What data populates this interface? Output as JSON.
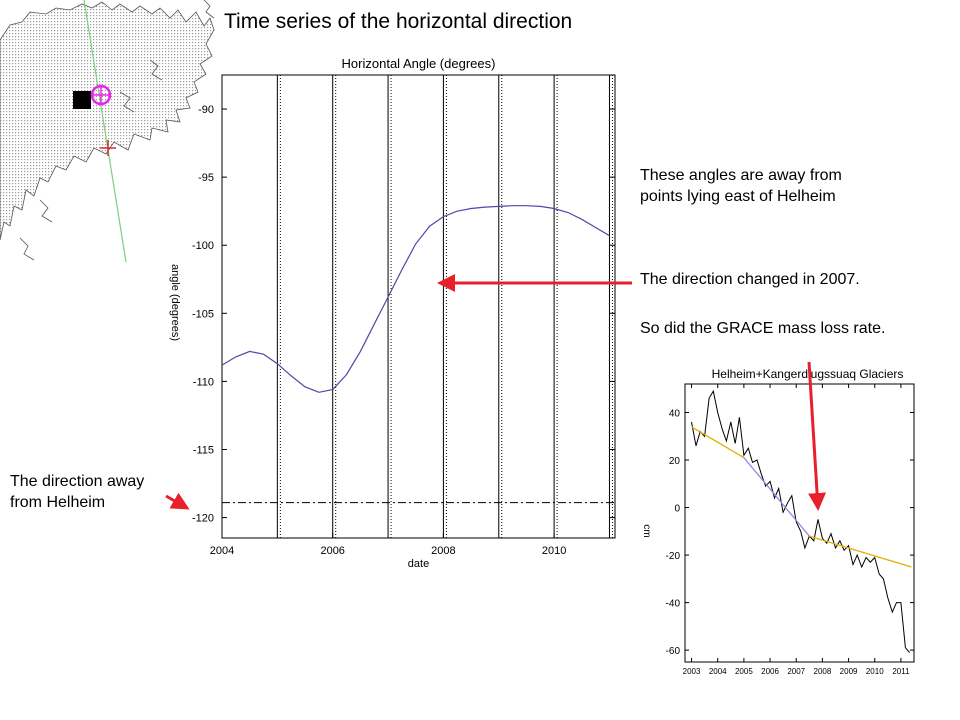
{
  "slide_title": "Time series of the horizontal direction",
  "annotations": {
    "east_points": [
      "These angles are away from",
      "points lying  east of Helheim"
    ],
    "direction_changed": "The direction changed in 2007.",
    "grace_loss": "So did the GRACE mass loss rate.",
    "direction_away": [
      "The direction away",
      "from Helheim"
    ]
  },
  "colors": {
    "arrow": "#e8202a",
    "angle_curve": "#4a4aa8",
    "grace_fit_early": "#8c8ce8",
    "grace_fit_late": "#e0b000",
    "map_marker_circle": "#ee22ee",
    "map_track": "#7cd07c"
  },
  "map_inset": {
    "icons": [
      "coastline-map",
      "station-square-marker",
      "target-circle-marker",
      "plus-marker",
      "profile-line"
    ]
  },
  "chart_data": [
    {
      "type": "line",
      "title": "Horizontal Angle (degrees)",
      "xlabel": "date",
      "ylabel": "angle (degrees)",
      "xlim": [
        2004,
        2011.1
      ],
      "ylim": [
        -121.5,
        -87.5
      ],
      "x_ticks": [
        2004,
        2006,
        2008,
        2010
      ],
      "y_ticks": [
        -90,
        -95,
        -100,
        -105,
        -110,
        -115,
        -120
      ],
      "x_tick_labels": [
        "2004",
        "2006",
        "2008",
        "2010"
      ],
      "y_tick_labels": [
        "-90",
        "-95",
        "-100",
        "-105",
        "-110",
        "-115",
        "-120"
      ],
      "vertical_gridlines": [
        2005,
        2006,
        2007,
        2008,
        2009,
        2010,
        2011
      ],
      "grid": false,
      "reference_line": {
        "y": -118.9,
        "style": "dash-dot"
      },
      "series": [
        {
          "x": [
            2004.0,
            2004.25,
            2004.5,
            2004.75,
            2005.0,
            2005.25,
            2005.5,
            2005.75,
            2006.0,
            2006.25,
            2006.5,
            2006.75,
            2007.0,
            2007.25,
            2007.5,
            2007.75,
            2008.0,
            2008.25,
            2008.5,
            2008.75,
            2009.0,
            2009.25,
            2009.5,
            2009.75,
            2010.0,
            2010.25,
            2010.5,
            2010.75,
            2011.0
          ],
          "y": [
            -108.8,
            -108.2,
            -107.8,
            -108.0,
            -108.7,
            -109.6,
            -110.4,
            -110.8,
            -110.6,
            -109.5,
            -107.8,
            -105.8,
            -103.8,
            -101.8,
            -99.9,
            -98.6,
            -97.9,
            -97.5,
            -97.3,
            -97.2,
            -97.15,
            -97.1,
            -97.1,
            -97.15,
            -97.3,
            -97.6,
            -98.1,
            -98.7,
            -99.3
          ]
        }
      ]
    },
    {
      "type": "line",
      "title": "Helheim+Kangerdlugssuaq Glaciers",
      "xlabel": "",
      "ylabel": "cm",
      "xlim": [
        2002.75,
        2011.5
      ],
      "ylim": [
        -65,
        52
      ],
      "x_ticks": [
        2003,
        2004,
        2005,
        2006,
        2007,
        2008,
        2009,
        2010,
        2011
      ],
      "y_ticks": [
        40,
        20,
        0,
        -20,
        -40,
        -60
      ],
      "x_tick_labels": [
        "2003",
        "2004",
        "2005",
        "2006",
        "2007",
        "2008",
        "2009",
        "2010",
        "2011"
      ],
      "y_tick_labels": [
        "40",
        "20",
        "0",
        "-20",
        "-40",
        "-60"
      ],
      "grid": false,
      "series": [
        {
          "x": [
            2003.0,
            2003.17,
            2003.33,
            2003.5,
            2003.67,
            2003.83,
            2004.0,
            2004.17,
            2004.33,
            2004.5,
            2004.67,
            2004.83,
            2005.0,
            2005.17,
            2005.33,
            2005.5,
            2005.67,
            2005.83,
            2006.0,
            2006.17,
            2006.33,
            2006.5,
            2006.67,
            2006.83,
            2007.0,
            2007.17,
            2007.33,
            2007.5,
            2007.67,
            2007.83,
            2008.0,
            2008.17,
            2008.33,
            2008.5,
            2008.67,
            2008.83,
            2009.0,
            2009.17,
            2009.33,
            2009.5,
            2009.67,
            2009.83,
            2010.0,
            2010.17,
            2010.33,
            2010.5,
            2010.67,
            2010.83,
            2011.0,
            2011.17,
            2011.33
          ],
          "y": [
            36,
            26,
            32,
            30,
            46,
            49,
            40,
            33,
            28,
            36,
            27,
            38,
            22,
            25,
            19,
            20,
            14,
            9,
            11,
            4,
            8,
            -2,
            2,
            5,
            -6,
            -10,
            -17,
            -12,
            -14,
            -5,
            -13,
            -15,
            -11,
            -17,
            -14,
            -18,
            -16,
            -24,
            -20,
            -25,
            -21,
            -23,
            -21,
            -28,
            -30,
            -38,
            -44,
            -40,
            -40,
            -59,
            -61
          ]
        },
        {
          "x": [
            2003.0,
            2005.0
          ],
          "y": [
            34,
            21
          ]
        },
        {
          "x": [
            2005.0,
            2007.5
          ],
          "y": [
            21,
            -12
          ]
        },
        {
          "x": [
            2007.5,
            2011.4
          ],
          "y": [
            -12,
            -25
          ]
        }
      ]
    }
  ]
}
